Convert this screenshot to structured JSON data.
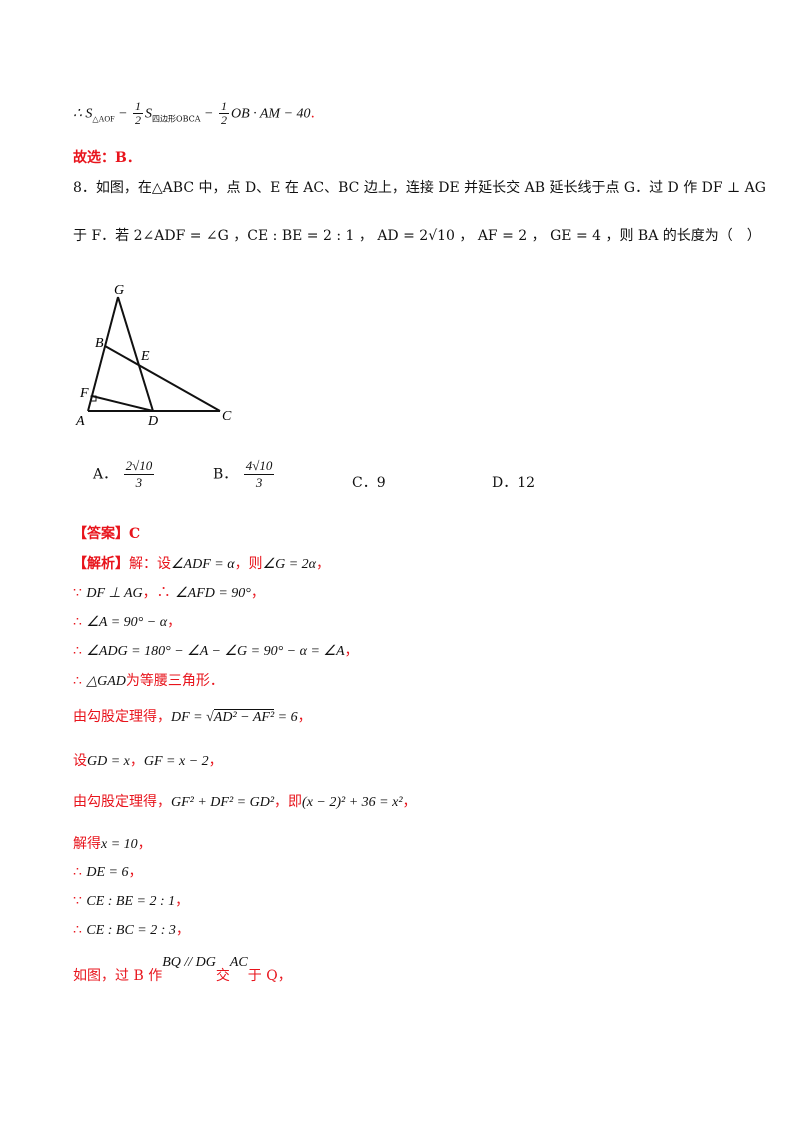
{
  "page": {
    "line1": {
      "prefix": "∴ S",
      "sub1": "△AOF",
      "minus1": " − ",
      "f1n": "1",
      "f1d": "2",
      "s2": "S",
      "sub2": "四边形OBCA",
      "minus2": " − ",
      "f2n": "1",
      "f2d": "2",
      "rest": "OB · AM − 40",
      "end": "."
    },
    "choice_line": "故选：B．",
    "problem": {
      "line1": "8．如图，在△ABC 中，点 D、E 在 AC、BC 边上，连接 DE 并延长交 AB 延长线于点 G．过 D 作 DF ⊥ AG",
      "line2": "于 F．若 2∠ADF = ∠G ，CE : BE = 2 : 1 ， AD = 2√10 ， AF = 2 ， GE = 4 ，则 BA 的长度为（　）"
    },
    "figure": {
      "labels": {
        "G": "G",
        "B": "B",
        "E": "E",
        "F": "F",
        "A": "A",
        "D": "D",
        "C": "C"
      }
    },
    "options": {
      "A": {
        "letter": "A．",
        "num": "2√10",
        "den": "3"
      },
      "B": {
        "letter": "B．",
        "num": "4√10",
        "den": "3"
      },
      "C": {
        "letter": "C．",
        "value": "9"
      },
      "D": {
        "letter": "D．",
        "value": "12"
      }
    },
    "answer": {
      "tag": "【答案】",
      "value": "C"
    },
    "solution": {
      "s1_tag": "【解析】",
      "s1_a": "解：设",
      "s1_m1": "∠ADF = α",
      "s1_b": "，则",
      "s1_m2": "∠G = 2α",
      "s1_c": "，",
      "s2_a": "∵ ",
      "s2_m1": "DF ⊥ AG",
      "s2_b": "，∴ ",
      "s2_m2": "∠AFD = 90°",
      "s2_c": "，",
      "s3_a": "∴ ",
      "s3_m": "∠A = 90° − α",
      "s3_c": "，",
      "s4_a": "∴ ",
      "s4_m": "∠ADG = 180° − ∠A − ∠G = 90° − α = ∠A",
      "s4_c": "，",
      "s5_a": "∴ ",
      "s5_m": "△GAD",
      "s5_b": "为等腰三角形．",
      "s6_a": "由勾股定理得，",
      "s6_m1": "DF = ",
      "s6_rad": "AD² − AF²",
      "s6_m2": " = 6",
      "s6_c": "，",
      "s7_a": "设",
      "s7_m1": "GD = x",
      "s7_b": "，",
      "s7_m2": "GF = x − 2",
      "s7_c": "，",
      "s8_a": "由勾股定理得，",
      "s8_m1": "GF² + DF² = GD²",
      "s8_b": "，即",
      "s8_m2": "(x − 2)² + 36 = x²",
      "s8_c": "，",
      "s9_a": "解得",
      "s9_m": "x = 10",
      "s9_c": "，",
      "s10_a": "∴ ",
      "s10_m": "DE = 6",
      "s10_c": "，",
      "s11_a": "∵ ",
      "s11_m": "CE : BE = 2 : 1",
      "s11_c": "，",
      "s12_a": "∴ ",
      "s12_m": "CE : BC = 2 : 3",
      "s12_c": "，",
      "s13_a": "如图，过 B 作",
      "s13_m1": "BQ // DG",
      "s13_b": "交",
      "s13_m2": "AC",
      "s13_c": "于 Q，"
    }
  }
}
